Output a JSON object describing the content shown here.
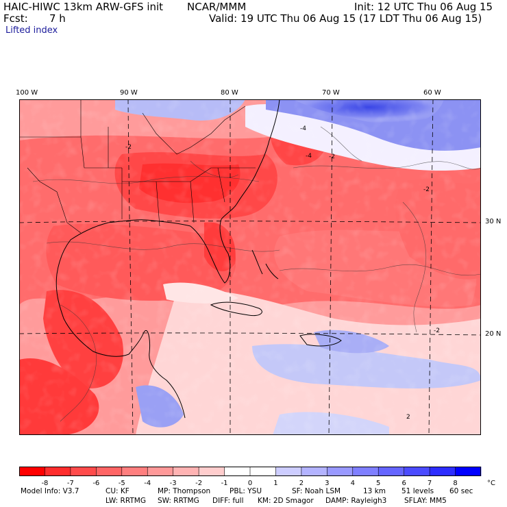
{
  "header": {
    "model_title": "HAIC-HIWC 13km ARW-GFS init",
    "org": "NCAR/MMM",
    "init_label": "Init: 12 UTC Thu 06 Aug 15",
    "fcst_label": "Fcst:",
    "fcst_value": "7 h",
    "valid_label": "Valid: 19 UTC Thu 06 Aug 15 (17 LDT Thu 06 Aug 15)",
    "field_name": "Lifted index"
  },
  "map": {
    "lon_labels": [
      "100 W",
      "90 W",
      "80 W",
      "70 W",
      "60 W"
    ],
    "lat_labels": [
      "30 N",
      "20 N"
    ],
    "contour_labels": [
      "-4",
      "-2",
      "-4",
      "-2",
      "-2",
      "2",
      "-2"
    ]
  },
  "colorbar": {
    "ticks": [
      "-8",
      "-7",
      "-6",
      "-5",
      "-4",
      "-3",
      "-2",
      "-1",
      "0",
      "1",
      "2",
      "3",
      "4",
      "5",
      "6",
      "7",
      "8"
    ],
    "unit": "°C",
    "colors": [
      "#ff0000",
      "#ff2d2d",
      "#ff4b4b",
      "#ff6565",
      "#ff7f7f",
      "#ff9999",
      "#ffb3b3",
      "#ffcdcd",
      "#ffffff",
      "#ffffff",
      "#cdcdff",
      "#b3b3ff",
      "#9999ff",
      "#7f7fff",
      "#6565ff",
      "#4b4bff",
      "#2d2dff",
      "#0000ff"
    ]
  },
  "footer": {
    "line1": [
      "Model Info: V3.7",
      "CU: KF",
      "MP: Thompson",
      "PBL: YSU",
      "SF: Noah LSM",
      "13 km",
      "51 levels",
      "60 sec"
    ],
    "line2": [
      "LW: RRTMG",
      "SW: RRTMG",
      "DIFF: full",
      "KM: 2D Smagor",
      "DAMP: Rayleigh3",
      "SFLAY: MM5"
    ]
  },
  "colors": {
    "stable_blue": "#4a55e6",
    "unstable_red": "#ff4444",
    "subtitle": "#1b1b9b"
  }
}
